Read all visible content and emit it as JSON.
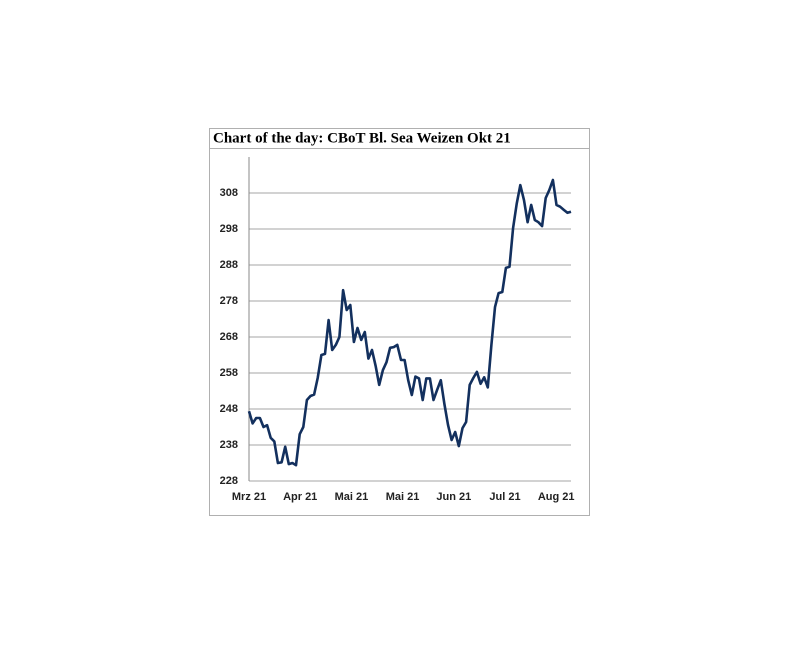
{
  "chart_data": {
    "type": "line",
    "title": "Chart of the day: CBoT Bl. Sea Weizen Okt 21",
    "xtick_labels": [
      "Mrz 21",
      "Apr 21",
      "Mai 21",
      "Mai 21",
      "Jun 21",
      "Jul 21",
      "Aug 21"
    ],
    "series": [
      {
        "color": "#13305e",
        "values": [
          247.4,
          244,
          245.5,
          245.5,
          243,
          243.5,
          240,
          239,
          233,
          233.2,
          237.5,
          232.7,
          233,
          232.4,
          241,
          243,
          250.5,
          251.6,
          252,
          256.6,
          263,
          263.3,
          272.7,
          264.4,
          265.8,
          268,
          281,
          275.5,
          276.9,
          266.6,
          270.5,
          267.2,
          269.4,
          262,
          264.4,
          260,
          254.7,
          258.8,
          261,
          265,
          265.2,
          265.8,
          261.6,
          261.6,
          256,
          251.9,
          257,
          256.5,
          250.5,
          256.5,
          256.5,
          250.5,
          253.3,
          256,
          249.4,
          243.6,
          239.4,
          241.6,
          237.7,
          242.7,
          244.4,
          254.7,
          256.6,
          258.3,
          255,
          256.8,
          254,
          265.8,
          276.3,
          280.2,
          280.5,
          287.2,
          287.5,
          298.3,
          305,
          310.2,
          306,
          299.9,
          304.7,
          300.5,
          299.9,
          298.8,
          306.6,
          308.8,
          311.6,
          304.7,
          304.2,
          303.3,
          302.5,
          302.8
        ]
      }
    ],
    "ylim": [
      228,
      318
    ],
    "yticks": [
      228,
      238,
      248,
      258,
      268,
      278,
      288,
      298,
      308
    ],
    "grid": true
  }
}
